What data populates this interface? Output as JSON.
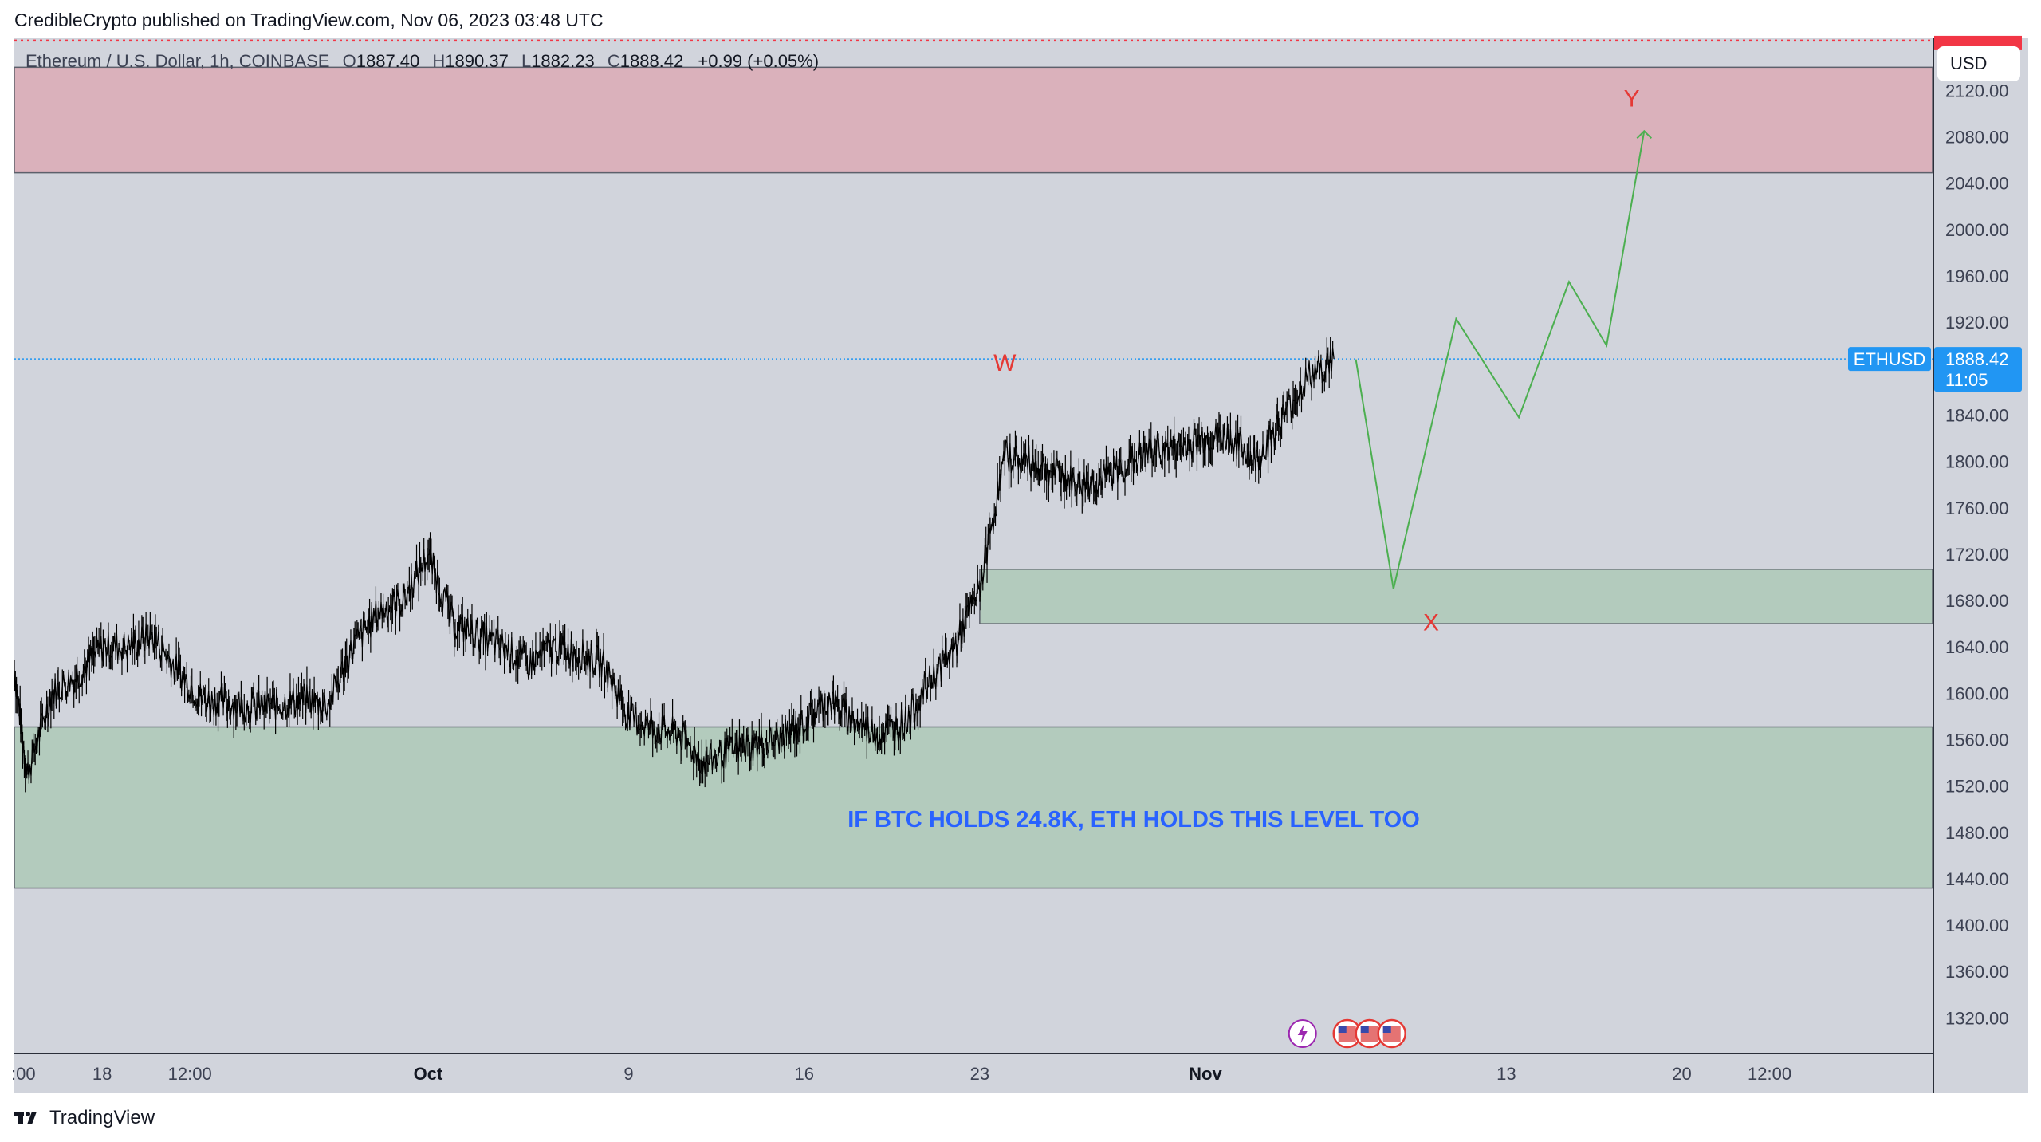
{
  "header": {
    "publisher": "CredibleCrypto published on TradingView.com, Nov 06, 2023 03:48 UTC"
  },
  "legend": {
    "symbol": "Ethereum / U.S. Dollar, 1h, COINBASE",
    "open_label": "O",
    "open": "1887.40",
    "high_label": "H",
    "high": "1890.37",
    "low_label": "L",
    "low": "1882.23",
    "close_label": "C",
    "close": "1888.42",
    "change": "+0.99 (+0.05%)"
  },
  "currency_button": "USD",
  "last_price": {
    "ticker": "ETHUSD",
    "price": "1888.42",
    "countdown": "11:05"
  },
  "annotation_text": "IF BTC HOLDS 24.8K, ETH HOLDS THIS LEVEL TOO",
  "wave_labels": {
    "w": "W",
    "x": "X",
    "y": "Y"
  },
  "footer": {
    "brand": "TradingView"
  },
  "colors": {
    "background": "#d1d4dc",
    "resistance_zone": "#dab1bb",
    "support_zone": "#b3cbbd",
    "candles": "#000000",
    "projection": "#4caf50",
    "wave_labels": "#e53935",
    "annotation": "#2962ff",
    "last_price_badge": "#2196f3"
  },
  "chart_data": {
    "type": "line",
    "symbol": "ETHUSD",
    "interval": "1h",
    "y_range": [
      1290,
      2165
    ],
    "y_ticks": [
      2120,
      2080,
      2040,
      2000,
      1960,
      1920,
      1840,
      1800,
      1760,
      1720,
      1680,
      1640,
      1600,
      1560,
      1520,
      1480,
      1440,
      1400,
      1360,
      1320
    ],
    "x_ticks": [
      {
        "label": ":00",
        "date": "2023-09-14T12:00",
        "bold": false
      },
      {
        "label": "18",
        "date": "2023-09-18",
        "bold": false
      },
      {
        "label": "12:00",
        "date": "2023-09-21T12:00",
        "bold": false
      },
      {
        "label": "Oct",
        "date": "2023-10-01",
        "bold": true
      },
      {
        "label": "9",
        "date": "2023-10-09",
        "bold": false
      },
      {
        "label": "16",
        "date": "2023-10-16",
        "bold": false
      },
      {
        "label": "23",
        "date": "2023-10-23",
        "bold": false
      },
      {
        "label": "Nov",
        "date": "2023-11-01",
        "bold": true
      },
      {
        "label": "13",
        "date": "2023-11-13",
        "bold": false
      },
      {
        "label": "20",
        "date": "2023-11-20",
        "bold": false
      },
      {
        "label": "12:00",
        "date": "2023-11-23T12:00",
        "bold": false
      }
    ],
    "x_range": [
      "2023-09-14T12:00",
      "2023-11-30"
    ],
    "price_path": [
      [
        "2023-09-14T12:00",
        1620
      ],
      [
        "2023-09-15",
        1530
      ],
      [
        "2023-09-16",
        1600
      ],
      [
        "2023-09-17",
        1615
      ],
      [
        "2023-09-18",
        1640
      ],
      [
        "2023-09-19",
        1640
      ],
      [
        "2023-09-20",
        1650
      ],
      [
        "2023-09-21",
        1620
      ],
      [
        "2023-09-22",
        1595
      ],
      [
        "2023-09-23",
        1592
      ],
      [
        "2023-09-24",
        1588
      ],
      [
        "2023-09-25",
        1590
      ],
      [
        "2023-09-26",
        1595
      ],
      [
        "2023-09-27",
        1590
      ],
      [
        "2023-09-28",
        1640
      ],
      [
        "2023-09-29",
        1670
      ],
      [
        "2023-09-30",
        1680
      ],
      [
        "2023-10-01",
        1720
      ],
      [
        "2023-10-02",
        1660
      ],
      [
        "2023-10-03",
        1650
      ],
      [
        "2023-10-04",
        1640
      ],
      [
        "2023-10-05",
        1625
      ],
      [
        "2023-10-06",
        1640
      ],
      [
        "2023-10-07",
        1635
      ],
      [
        "2023-10-08",
        1625
      ],
      [
        "2023-10-09",
        1580
      ],
      [
        "2023-10-10",
        1570
      ],
      [
        "2023-10-11",
        1565
      ],
      [
        "2023-10-12",
        1540
      ],
      [
        "2023-10-13",
        1550
      ],
      [
        "2023-10-14",
        1555
      ],
      [
        "2023-10-15",
        1560
      ],
      [
        "2023-10-16",
        1575
      ],
      [
        "2023-10-17",
        1595
      ],
      [
        "2023-10-18",
        1575
      ],
      [
        "2023-10-19",
        1565
      ],
      [
        "2023-10-20",
        1575
      ],
      [
        "2023-10-21",
        1610
      ],
      [
        "2023-10-22",
        1640
      ],
      [
        "2023-10-23",
        1690
      ],
      [
        "2023-10-24",
        1805
      ],
      [
        "2023-10-25",
        1800
      ],
      [
        "2023-10-26",
        1790
      ],
      [
        "2023-10-27",
        1780
      ],
      [
        "2023-10-28",
        1785
      ],
      [
        "2023-10-29",
        1800
      ],
      [
        "2023-10-30",
        1810
      ],
      [
        "2023-10-31",
        1812
      ],
      [
        "2023-11-01",
        1820
      ],
      [
        "2023-11-02",
        1820
      ],
      [
        "2023-11-03",
        1800
      ],
      [
        "2023-11-04",
        1835
      ],
      [
        "2023-11-05",
        1870
      ],
      [
        "2023-11-06T03:00",
        1888.42
      ]
    ],
    "projection_path": [
      [
        "2023-11-07T00:00",
        1888
      ],
      [
        "2023-11-08T12:00",
        1690
      ],
      [
        "2023-11-11T00:00",
        1923
      ],
      [
        "2023-11-13T12:00",
        1838
      ],
      [
        "2023-11-15T12:00",
        1955
      ],
      [
        "2023-11-17T00:00",
        1900
      ],
      [
        "2023-11-18T12:00",
        2085
      ]
    ],
    "zones": [
      {
        "kind": "resistance",
        "start": "2023-09-14T12:00",
        "end": "2023-11-30",
        "low": 2049,
        "high": 2140
      },
      {
        "kind": "support",
        "start": "2023-10-23",
        "end": "2023-11-30",
        "low": 1660,
        "high": 1707
      },
      {
        "kind": "support",
        "start": "2023-09-14T12:00",
        "end": "2023-11-30",
        "low": 1432,
        "high": 1571
      }
    ],
    "wave_points": [
      {
        "label": "W",
        "date": "2023-10-24",
        "price": 1885
      },
      {
        "label": "X",
        "date": "2023-11-10",
        "price": 1661
      },
      {
        "label": "Y",
        "date": "2023-11-18",
        "price": 2113
      }
    ],
    "reference_lines": [
      {
        "kind": "dotted-alert",
        "price": 2163
      },
      {
        "kind": "last-price",
        "price": 1888.42
      }
    ]
  }
}
